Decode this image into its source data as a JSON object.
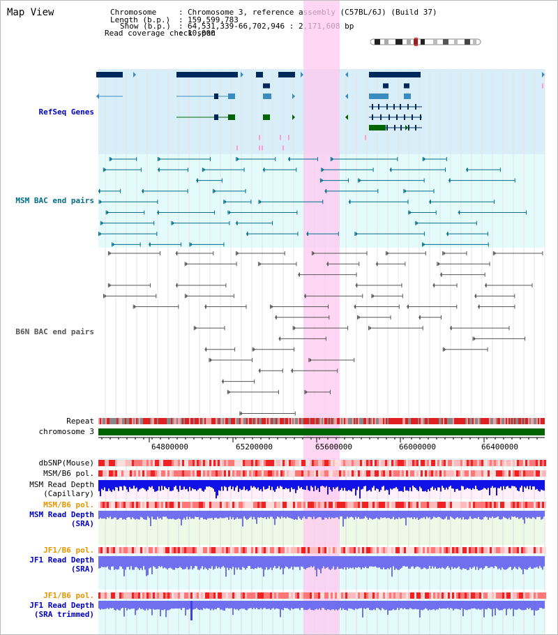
{
  "title": "Map View",
  "info": {
    "chromosome_key": "Chromosome",
    "chromosome_value": "Chromosome 3, reference assembly (C57BL/6J) (Build 37)",
    "length_key": "Length (b.p.)",
    "length_value": "159,599,783",
    "show_key": "Show (b.p.)",
    "show_value": "64,531,339-66,702,946 : 2,171,608 bp",
    "coverage_key": "Read coverage check span",
    "coverage_value": "10,000"
  },
  "track_labels": {
    "refseq": "RefSeq Genes",
    "msm_bac": "MSM BAC end pairs",
    "b6n_bac": "B6N BAC end pairs",
    "repeat": "Repeat",
    "chromosome": "chromosome 3",
    "dbsnp": "dbSNP(Mouse)",
    "msm_b6_pol_1": "MSM/B6 pol.",
    "msm_read_depth_cap_1": "MSM Read Depth",
    "msm_read_depth_cap_2": "(Capillary)",
    "msm_b6_pol_2": "MSM/B6 pol.",
    "msm_read_depth_sra_1": "MSM Read Depth",
    "msm_read_depth_sra_2": "(SRA)",
    "jf1_b6_pol_1": "JF1/B6 pol.",
    "jf1_read_depth_sra_1": "JF1 Read Depth",
    "jf1_read_depth_sra_2": "(SRA)",
    "jf1_b6_pol_2": "JF1/B6 pol.",
    "jf1_read_depth_trim_1": "JF1 Read Depth",
    "jf1_read_depth_trim_2": "(SRA trimmed)"
  },
  "axis_ticks": [
    "64800000",
    "65200000",
    "65600000",
    "66000000",
    "66400000"
  ],
  "colors": {
    "refseq_bg": "#d8eef8",
    "gene_dark": "#00285a",
    "gene_mid": "#3a8cc0",
    "gene_green": "#006400",
    "msm_bg": "#e4fbfb",
    "msm_feature": "#006d8a",
    "b6n_feature": "#555555",
    "highlight": "#ffc8f0",
    "label_blue": "#0000c0",
    "label_teal": "#006d8a",
    "label_orange": "#e69500",
    "chrom_green": "#006400",
    "depth_blue": "#1010e8",
    "depth_light": "#6f6ff0"
  }
}
